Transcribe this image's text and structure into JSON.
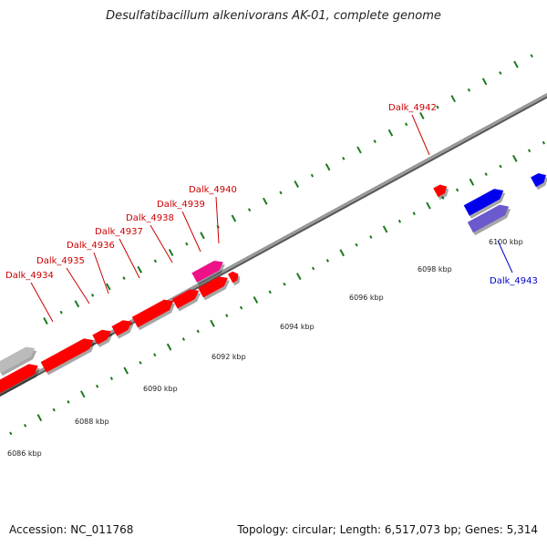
{
  "title": "Desulfatibacillum alkenivorans AK-01, complete genome",
  "footer": {
    "accession": "Accession: NC_011768",
    "topology": "Topology: circular; Length: 6,517,073 bp; Genes: 5,314"
  },
  "colors": {
    "forward_gene": "#ff0000",
    "reverse_gene": "#0000ee",
    "pseudo_gene": "#bbbbbb",
    "highlight_gene": "#ee1188",
    "reverse_highlight": "#6a5acd",
    "backbone": "#888888",
    "tick": "#1a7a1a",
    "label_red": "#cc0000",
    "label_blue": "#0000cc"
  },
  "tick_labels": [
    "6086 kbp",
    "6088 kbp",
    "6090 kbp",
    "6092 kbp",
    "6094 kbp",
    "6096 kbp",
    "6098 kbp",
    "6100 kbp"
  ],
  "gene_labels": [
    {
      "text": "Dalk_4934",
      "strand": "forward"
    },
    {
      "text": "Dalk_4935",
      "strand": "forward"
    },
    {
      "text": "Dalk_4936",
      "strand": "forward"
    },
    {
      "text": "Dalk_4937",
      "strand": "forward"
    },
    {
      "text": "Dalk_4938",
      "strand": "forward"
    },
    {
      "text": "Dalk_4939",
      "strand": "forward"
    },
    {
      "text": "Dalk_4940",
      "strand": "forward"
    },
    {
      "text": "Dalk_4942",
      "strand": "forward"
    },
    {
      "text": "Dalk_4943",
      "strand": "reverse"
    }
  ]
}
